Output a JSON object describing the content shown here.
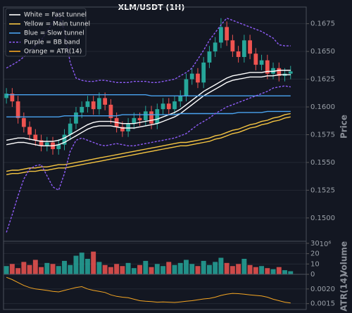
{
  "chart_data": {
    "type": "candlestick",
    "title": "XLM/USDT (1H)",
    "ylabel": "Price",
    "ylim": [
      0.1479,
      0.169
    ],
    "yticks": [
      {
        "value": 0.15,
        "label": "0.1500"
      },
      0.1525,
      {
        "value": 0.155,
        "label": "0.1550"
      },
      0.1575,
      {
        "value": 0.16,
        "label": "0.1600"
      },
      0.1625,
      {
        "value": 0.165,
        "label": "0.1650"
      },
      0.1675
    ],
    "grid": true,
    "up_color": "#26a69a",
    "down_color": "#ef5350",
    "legend": "upper left",
    "open": [
      0.1608,
      0.1612,
      0.1605,
      0.159,
      0.1582,
      0.1575,
      0.157,
      0.1565,
      0.1568,
      0.1562,
      0.1566,
      0.1575,
      0.1585,
      0.1595,
      0.16,
      0.1605,
      0.1598,
      0.1608,
      0.1602,
      0.159,
      0.1582,
      0.1578,
      0.1585,
      0.159,
      0.1588,
      0.1596,
      0.1585,
      0.1598,
      0.1603,
      0.1598,
      0.1605,
      0.161,
      0.1625,
      0.163,
      0.1622,
      0.164,
      0.165,
      0.1658,
      0.1672,
      0.166,
      0.165,
      0.1645,
      0.166,
      0.1648,
      0.1638,
      0.1642,
      0.163,
      0.1635,
      0.1628,
      0.163
    ],
    "high": [
      0.1617,
      0.1617,
      0.161,
      0.1595,
      0.1587,
      0.158,
      0.1575,
      0.1573,
      0.1573,
      0.1571,
      0.158,
      0.159,
      0.16,
      0.1605,
      0.161,
      0.161,
      0.1613,
      0.1613,
      0.1607,
      0.1595,
      0.1587,
      0.159,
      0.1595,
      0.1595,
      0.1601,
      0.1601,
      0.1603,
      0.1608,
      0.1608,
      0.161,
      0.1615,
      0.163,
      0.1635,
      0.1635,
      0.1645,
      0.1655,
      0.1663,
      0.168,
      0.1677,
      0.1665,
      0.1655,
      0.1665,
      0.1665,
      0.1653,
      0.1647,
      0.1647,
      0.164,
      0.164,
      0.1635,
      0.1637
    ],
    "low": [
      0.1603,
      0.16,
      0.1585,
      0.1577,
      0.157,
      0.1565,
      0.156,
      0.156,
      0.1557,
      0.1557,
      0.1561,
      0.157,
      0.158,
      0.159,
      0.1595,
      0.1593,
      0.1593,
      0.1597,
      0.1585,
      0.1577,
      0.1573,
      0.1573,
      0.158,
      0.1583,
      0.1583,
      0.158,
      0.158,
      0.1593,
      0.1593,
      0.1593,
      0.16,
      0.1605,
      0.162,
      0.1617,
      0.1617,
      0.1635,
      0.1645,
      0.1653,
      0.1655,
      0.1645,
      0.164,
      0.164,
      0.1643,
      0.1633,
      0.1633,
      0.1625,
      0.1625,
      0.1623,
      0.1623,
      0.1625
    ],
    "close": [
      0.1612,
      0.1605,
      0.159,
      0.1582,
      0.1575,
      0.157,
      0.1565,
      0.1568,
      0.1562,
      0.1566,
      0.1575,
      0.1585,
      0.1595,
      0.16,
      0.1605,
      0.1598,
      0.1608,
      0.1602,
      0.159,
      0.1582,
      0.1578,
      0.1585,
      0.159,
      0.1588,
      0.1596,
      0.1585,
      0.1598,
      0.1603,
      0.1598,
      0.1605,
      0.161,
      0.1625,
      0.163,
      0.1622,
      0.164,
      0.165,
      0.1658,
      0.1672,
      0.166,
      0.165,
      0.1645,
      0.166,
      0.1648,
      0.1638,
      0.1642,
      0.163,
      0.1635,
      0.1628,
      0.163,
      0.1632
    ],
    "series": [
      {
        "name": "White = Fast tunnel",
        "color": "#ffffff",
        "dash": false,
        "lines": [
          [
            0.157,
            0.1571,
            0.1572,
            0.1572,
            0.1571,
            0.157,
            0.1569,
            0.1569,
            0.1569,
            0.157,
            0.1572,
            0.1575,
            0.1578,
            0.1581,
            0.1584,
            0.1586,
            0.1587,
            0.1587,
            0.1587,
            0.1586,
            0.1585,
            0.1585,
            0.1585,
            0.1586,
            0.1587,
            0.1588,
            0.1589,
            0.1591,
            0.1593,
            0.1595,
            0.1598,
            0.1602,
            0.1606,
            0.161,
            0.1614,
            0.1617,
            0.162,
            0.1623,
            0.1626,
            0.1628,
            0.1629,
            0.163,
            0.1631,
            0.1631,
            0.1631,
            0.1632,
            0.1632,
            0.1633,
            0.1633,
            0.1633
          ],
          [
            0.1566,
            0.1567,
            0.1568,
            0.1568,
            0.1567,
            0.1566,
            0.1565,
            0.1565,
            0.1565,
            0.1566,
            0.1568,
            0.1571,
            0.1574,
            0.1577,
            0.158,
            0.1582,
            0.1583,
            0.1583,
            0.1583,
            0.1582,
            0.1581,
            0.1581,
            0.1581,
            0.1582,
            0.1583,
            0.1584,
            0.1585,
            0.1587,
            0.1589,
            0.1591,
            0.1594,
            0.1598,
            0.1602,
            0.1606,
            0.161,
            0.1613,
            0.1616,
            0.1619,
            0.1622,
            0.1624,
            0.1625,
            0.1626,
            0.1627,
            0.1627,
            0.1627,
            0.1628,
            0.1628,
            0.1629,
            0.1629,
            0.1629
          ]
        ]
      },
      {
        "name": "Yellow = Main tunnel",
        "color": "#f5c542",
        "dash": false,
        "lines": [
          [
            0.1542,
            0.1543,
            0.1543,
            0.1544,
            0.1545,
            0.1545,
            0.1546,
            0.1546,
            0.1547,
            0.1548,
            0.1548,
            0.1549,
            0.155,
            0.1551,
            0.1552,
            0.1553,
            0.1554,
            0.1555,
            0.1556,
            0.1557,
            0.1558,
            0.1559,
            0.156,
            0.1561,
            0.1562,
            0.1563,
            0.1564,
            0.1565,
            0.1566,
            0.1567,
            0.1568,
            0.1568,
            0.1569,
            0.157,
            0.1571,
            0.1572,
            0.1574,
            0.1575,
            0.1577,
            0.1579,
            0.158,
            0.1582,
            0.1584,
            0.1585,
            0.1587,
            0.1588,
            0.159,
            0.1591,
            0.1593,
            0.1594
          ],
          [
            0.1539,
            0.154,
            0.154,
            0.1541,
            0.1542,
            0.1542,
            0.1543,
            0.1543,
            0.1544,
            0.1545,
            0.1545,
            0.1546,
            0.1547,
            0.1548,
            0.1549,
            0.155,
            0.1551,
            0.1552,
            0.1553,
            0.1554,
            0.1555,
            0.1556,
            0.1557,
            0.1558,
            0.1559,
            0.156,
            0.1561,
            0.1562,
            0.1563,
            0.1564,
            0.1565,
            0.1565,
            0.1566,
            0.1567,
            0.1568,
            0.1569,
            0.1571,
            0.1572,
            0.1574,
            0.1576,
            0.1577,
            0.1579,
            0.1581,
            0.1582,
            0.1584,
            0.1585,
            0.1587,
            0.1588,
            0.159,
            0.1591
          ]
        ]
      },
      {
        "name": "Blue = Slow tunnel",
        "color": "#4aa3f0",
        "dash": false,
        "lines": [
          [
            0.1611,
            0.1611,
            0.1611,
            0.1611,
            0.1611,
            0.1611,
            0.1611,
            0.1611,
            0.1611,
            0.1611,
            0.1611,
            0.1611,
            0.1611,
            0.1611,
            0.1611,
            0.1611,
            0.1611,
            0.1611,
            0.1611,
            0.1611,
            0.1611,
            0.1611,
            0.1611,
            0.1611,
            0.1611,
            0.161,
            0.161,
            0.161,
            0.161,
            0.161,
            0.161,
            0.161,
            0.161,
            0.161,
            0.161,
            0.161,
            0.161,
            0.161,
            0.161,
            0.161,
            0.161,
            0.161,
            0.161,
            0.161,
            0.161,
            0.161,
            0.161,
            0.161,
            0.161,
            0.161
          ],
          [
            0.1591,
            0.1591,
            0.1591,
            0.1591,
            0.1591,
            0.1591,
            0.1591,
            0.1591,
            0.1591,
            0.1591,
            0.1592,
            0.1592,
            0.1592,
            0.1592,
            0.1592,
            0.1592,
            0.1592,
            0.1592,
            0.1592,
            0.1592,
            0.1593,
            0.1593,
            0.1593,
            0.1593,
            0.1593,
            0.1593,
            0.1593,
            0.1593,
            0.1593,
            0.1593,
            0.1594,
            0.1594,
            0.1594,
            0.1594,
            0.1594,
            0.1594,
            0.1594,
            0.1594,
            0.1594,
            0.1594,
            0.1595,
            0.1595,
            0.1595,
            0.1595,
            0.1595,
            0.1596,
            0.1596,
            0.1596,
            0.1596,
            0.1596
          ]
        ]
      },
      {
        "name": "Purple = BB band",
        "color": "#8e5cf7",
        "dash": true,
        "lines": [
          [
            0.1635,
            0.1638,
            0.1641,
            0.1645,
            0.165,
            0.1655,
            0.166,
            0.1668,
            0.1676,
            0.1685,
            0.1668,
            0.164,
            0.1626,
            0.1624,
            0.1623,
            0.1623,
            0.1624,
            0.1624,
            0.1623,
            0.1622,
            0.1622,
            0.1622,
            0.1623,
            0.1623,
            0.1623,
            0.1622,
            0.1622,
            0.1623,
            0.1624,
            0.1625,
            0.1628,
            0.1631,
            0.1635,
            0.1643,
            0.1651,
            0.166,
            0.1667,
            0.1674,
            0.168,
            0.1678,
            0.1676,
            0.1674,
            0.1672,
            0.167,
            0.1668,
            0.1665,
            0.1662,
            0.1656,
            0.1655,
            0.1655
          ],
          [
            0.1487,
            0.1503,
            0.152,
            0.1535,
            0.1544,
            0.1547,
            0.1548,
            0.1538,
            0.1528,
            0.1525,
            0.154,
            0.156,
            0.157,
            0.1572,
            0.157,
            0.1568,
            0.1566,
            0.1565,
            0.1566,
            0.1567,
            0.1566,
            0.1565,
            0.1565,
            0.1566,
            0.1567,
            0.1568,
            0.1569,
            0.157,
            0.1571,
            0.1572,
            0.1574,
            0.1576,
            0.158,
            0.1584,
            0.1587,
            0.159,
            0.1594,
            0.1597,
            0.16,
            0.1602,
            0.1604,
            0.1606,
            0.1608,
            0.161,
            0.1612,
            0.1614,
            0.1617,
            0.1618,
            0.1619,
            0.1618
          ]
        ]
      },
      {
        "name": "Orange = ATR(14)",
        "color": "#f5a623",
        "dash": false,
        "panel": "atr",
        "lines": [
          [
            0.0024,
            0.00232,
            0.00222,
            0.00212,
            0.00205,
            0.002,
            0.00198,
            0.00195,
            0.00192,
            0.0019,
            0.00195,
            0.002,
            0.00205,
            0.00208,
            0.002,
            0.00195,
            0.00192,
            0.00188,
            0.0018,
            0.00175,
            0.00172,
            0.0017,
            0.00165,
            0.0016,
            0.00158,
            0.00157,
            0.00155,
            0.00156,
            0.00155,
            0.00154,
            0.00156,
            0.00158,
            0.0016,
            0.00163,
            0.00166,
            0.00168,
            0.00172,
            0.00178,
            0.00182,
            0.00185,
            0.00184,
            0.00182,
            0.0018,
            0.00178,
            0.00176,
            0.00172,
            0.00165,
            0.0016,
            0.00155,
            0.00152
          ]
        ]
      }
    ],
    "volume": {
      "ylabel": "Volume",
      "offset_label": "10⁶",
      "ylim": [
        0,
        32
      ],
      "yticks": [
        0,
        10,
        20,
        30
      ],
      "values": [
        8,
        10,
        6,
        12,
        9,
        14,
        7,
        11,
        10,
        8,
        13,
        9,
        18,
        21,
        15,
        22,
        12,
        9,
        7,
        10,
        8,
        11,
        6,
        9,
        13,
        7,
        10,
        8,
        12,
        9,
        11,
        14,
        10,
        8,
        13,
        9,
        12,
        16,
        11,
        8,
        10,
        15,
        9,
        7,
        8,
        6,
        5,
        7,
        4,
        3
      ]
    },
    "atr": {
      "ylabel": "ATR(14)",
      "ylim": [
        0.0013,
        0.0025
      ],
      "yticks": [
        0.0015,
        {
          "value": 0.002,
          "label": "0.0020"
        }
      ]
    }
  }
}
